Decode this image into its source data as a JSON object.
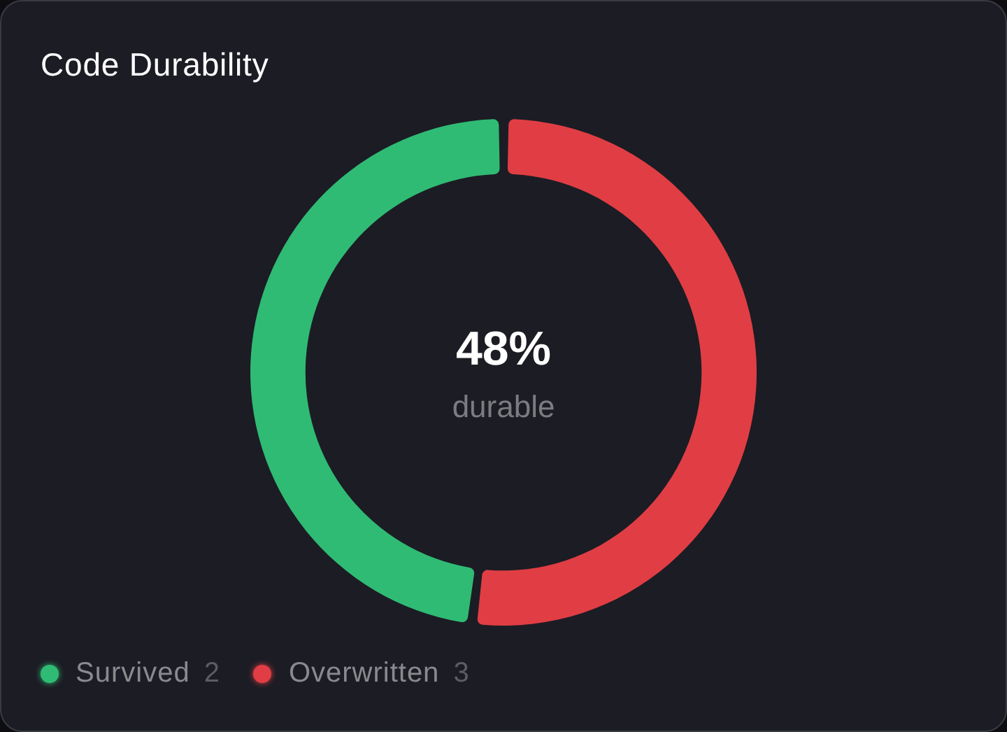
{
  "chart_data": {
    "type": "donut",
    "title": "Code Durability",
    "categories": [
      "Survived",
      "Overwritten"
    ],
    "values": [
      48,
      52
    ],
    "colors": [
      "#2fbb74",
      "#e03e44"
    ],
    "annotations": [
      "48%",
      "durable",
      "2",
      "3"
    ],
    "legend": "bottom left"
  }
}
